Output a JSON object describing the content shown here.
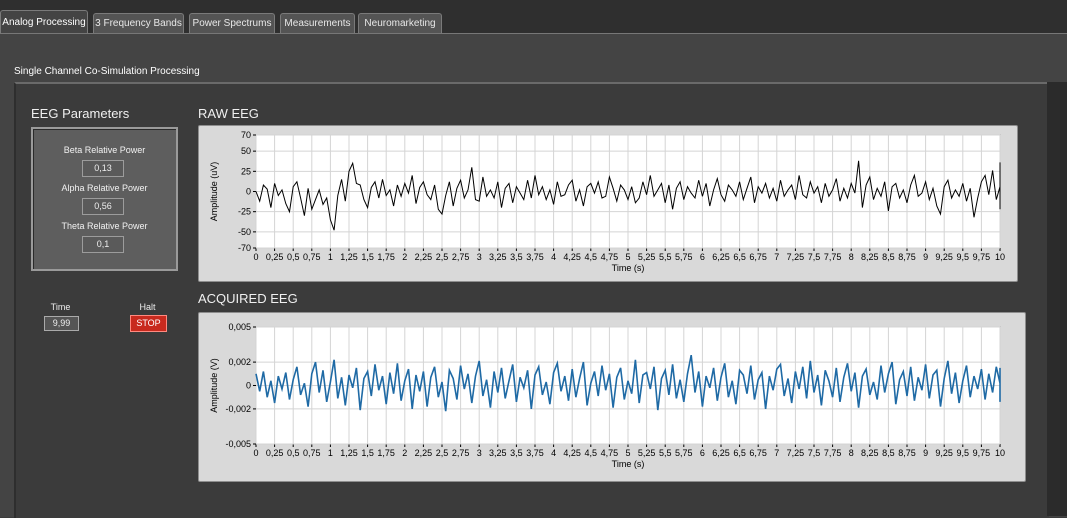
{
  "tabs": [
    {
      "label": "Analog Processing",
      "active": true
    },
    {
      "label": "3 Frequency Bands",
      "active": false
    },
    {
      "label": "Power Spectrums",
      "active": false
    },
    {
      "label": "Measurements",
      "active": false
    },
    {
      "label": "Neuromarketing",
      "active": false
    }
  ],
  "section_title": "Single Channel Co-Simulation Processing",
  "eeg_params": {
    "title": "EEG Parameters",
    "beta_label": "Beta Relative Power",
    "beta_value": "0,13",
    "alpha_label": "Alpha Relative Power",
    "alpha_value": "0,56",
    "theta_label": "Theta Relative Power",
    "theta_value": "0,1"
  },
  "controls": {
    "time_label": "Time",
    "time_value": "9,99",
    "halt_label": "Halt",
    "stop_label": "STOP"
  },
  "colors": {
    "raw_trace": "#000000",
    "acquired_trace": "#1f6aa5",
    "stop_button": "#c82a1e"
  },
  "chart_data": [
    {
      "type": "line",
      "title": "RAW EEG",
      "xlabel": "Time (s)",
      "ylabel": "Amplitude (uV)",
      "xlim": [
        0,
        10
      ],
      "ylim": [
        -70,
        70
      ],
      "x_ticks": [
        "0",
        "0,25",
        "0,5",
        "0,75",
        "1",
        "1,25",
        "1,5",
        "1,75",
        "2",
        "2,25",
        "2,5",
        "2,75",
        "3",
        "3,25",
        "3,5",
        "3,75",
        "4",
        "4,25",
        "4,5",
        "4,75",
        "5",
        "5,25",
        "5,5",
        "5,75",
        "6",
        "6,25",
        "6,5",
        "6,75",
        "7",
        "7,25",
        "7,5",
        "7,75",
        "8",
        "8,25",
        "8,5",
        "8,75",
        "9",
        "9,25",
        "9,5",
        "9,75",
        "10"
      ],
      "y_ticks": [
        "70",
        "50",
        "25",
        "0",
        "-25",
        "-50",
        "-70"
      ],
      "grid": true,
      "series": [
        {
          "color": "#000000",
          "x_step": 0.05,
          "values": [
            0,
            -12,
            8,
            3,
            -20,
            10,
            -5,
            2,
            -15,
            -25,
            6,
            12,
            -8,
            -30,
            4,
            -22,
            -10,
            2,
            -16,
            -8,
            -35,
            -48,
            -5,
            15,
            -12,
            25,
            35,
            10,
            8,
            -10,
            -20,
            5,
            12,
            -8,
            15,
            -5,
            2,
            -18,
            8,
            -6,
            10,
            -2,
            20,
            -15,
            5,
            12,
            -4,
            -10,
            8,
            -22,
            -28,
            -5,
            12,
            -18,
            4,
            14,
            -8,
            2,
            30,
            -10,
            -12,
            18,
            -6,
            2,
            -8,
            12,
            -20,
            4,
            10,
            -14,
            6,
            -2,
            -10,
            14,
            -8,
            20,
            -4,
            6,
            -10,
            2,
            -16,
            12,
            -6,
            -4,
            8,
            14,
            -12,
            2,
            -18,
            6,
            10,
            -2,
            12,
            -8,
            -6,
            18,
            4,
            -12,
            8,
            2,
            -10,
            6,
            -14,
            -8,
            12,
            -4,
            20,
            -6,
            2,
            10,
            -14,
            8,
            -22,
            4,
            12,
            -10,
            6,
            -2,
            -8,
            14,
            -6,
            10,
            -18,
            2,
            16,
            -4,
            -12,
            8,
            2,
            -6,
            12,
            -10,
            4,
            18,
            -14,
            6,
            -2,
            10,
            -8,
            4,
            -12,
            14,
            -6,
            2,
            8,
            -10,
            20,
            -4,
            -8,
            12,
            -2,
            6,
            -14,
            10,
            -6,
            2,
            16,
            -12,
            4,
            -8,
            10,
            -2,
            38,
            -20,
            8,
            18,
            -10,
            4,
            -6,
            12,
            -24,
            6,
            10,
            -8,
            2,
            -14,
            8,
            20,
            -6,
            -2,
            12,
            -10,
            4,
            -18,
            -28,
            6,
            14,
            -8,
            2,
            -6,
            10,
            -12,
            4,
            -32,
            -8,
            12,
            20,
            -4,
            26,
            -10,
            6,
            -2,
            8,
            -14,
            12,
            -6,
            4,
            24,
            -16,
            2,
            -10,
            6,
            36,
            -12,
            -4,
            8,
            -20,
            -22,
            10,
            -6,
            2
          ]
        }
      ]
    },
    {
      "type": "line",
      "title": "ACQUIRED EEG",
      "xlabel": "Time (s)",
      "ylabel": "Amplitude (V)",
      "xlim": [
        0,
        10
      ],
      "ylim": [
        -0.005,
        0.005
      ],
      "x_ticks": [
        "0",
        "0,25",
        "0,5",
        "0,75",
        "1",
        "1,25",
        "1,5",
        "1,75",
        "2",
        "2,25",
        "2,5",
        "2,75",
        "3",
        "3,25",
        "3,5",
        "3,75",
        "4",
        "4,25",
        "4,5",
        "4,75",
        "5",
        "5,25",
        "5,5",
        "5,75",
        "6",
        "6,25",
        "6,5",
        "6,75",
        "7",
        "7,25",
        "7,5",
        "7,75",
        "8",
        "8,25",
        "8,5",
        "8,75",
        "9",
        "9,25",
        "9,5",
        "9,75",
        "10"
      ],
      "y_ticks": [
        "0,005",
        "0,002",
        "0",
        "-0,002",
        "-0,005"
      ],
      "grid": true,
      "series": [
        {
          "color": "#1f6aa5",
          "x_step": 0.05,
          "values": [
            0.001,
            -0.0005,
            0.0012,
            -0.001,
            0.0004,
            -0.0015,
            0.0008,
            -0.0003,
            0.0011,
            -0.0012,
            0.0005,
            0.0016,
            -0.0008,
            0.0002,
            -0.0018,
            0.001,
            0.002,
            -0.0006,
            0.0013,
            -0.0014,
            0.0003,
            0.0022,
            -0.0011,
            0.0007,
            -0.0017,
            0.0009,
            -0.0002,
            0.0015,
            -0.0021,
            0.0006,
            0.0012,
            -0.0009,
            0.0018,
            -0.0004,
            0.0008,
            -0.0016,
            0.0011,
            -0.0007,
            0.0019,
            -0.0013,
            0.0004,
            0.0014,
            -0.002,
            0.0009,
            -0.0005,
            0.0012,
            -0.0018,
            0.0007,
            0.0016,
            -0.001,
            0.0003,
            -0.0022,
            0.0013,
            0.0006,
            -0.0012,
            0.0017,
            -0.0003,
            0.001,
            -0.0015,
            0.0008,
            0.0021,
            -0.0009,
            0.0005,
            -0.0019,
            0.0012,
            -0.0006,
            0.0015,
            -0.0011,
            0.0004,
            0.0018,
            -0.0014,
            0.0007,
            -0.0002,
            0.0013,
            -0.002,
            0.0009,
            0.0016,
            -0.0008,
            0.0003,
            -0.0016,
            0.0011,
            0.0019,
            -0.0005,
            0.0008,
            -0.0013,
            0.0014,
            -0.001,
            0.0006,
            0.002,
            -0.0017,
            0.0002,
            0.0012,
            -0.0009,
            0.0017,
            -0.0004,
            0.001,
            -0.0019,
            0.0007,
            0.0015,
            -0.0012,
            0.0004,
            -0.0007,
            0.0022,
            -0.0015,
            0.0009,
            0.0011,
            -0.0003,
            0.0016,
            -0.0021,
            0.0006,
            0.0013,
            -0.0008,
            0.0018,
            -0.0011,
            0.0005,
            -0.0014,
            0.001,
            0.0026,
            -0.0006,
            0.0012,
            -0.0018,
            0.0008,
            -0.0002,
            0.0015,
            -0.0013,
            0.0007,
            0.0019,
            -0.001,
            0.0004,
            -0.0016,
            0.0013,
            0.0009,
            -0.0007,
            0.0017,
            -0.0012,
            0.0005,
            0.0011,
            -0.002,
            0.0008,
            -0.0004,
            0.0014,
            0.0018,
            -0.0009,
            0.0006,
            -0.0015,
            0.0012,
            -0.0003,
            0.0016,
            -0.0011,
            0.0021,
            -0.0006,
            0.0009,
            -0.0017,
            0.0013,
            0.0004,
            -0.001,
            0.0015,
            -0.0014,
            0.0007,
            0.0019,
            -0.0005,
            0.0011,
            -0.0019,
            0.0008,
            0.0014,
            -0.0008,
            0.0003,
            -0.0012,
            0.0017,
            -0.0006,
            0.001,
            0.002,
            -0.0016,
            0.0005,
            0.0012,
            -0.0009,
            0.0016,
            -0.0013,
            0.0007,
            -0.0004,
            0.0018,
            -0.0011,
            0.0009,
            0.0013,
            -0.0018,
            0.0006,
            0.0021,
            -0.0007,
            0.0011,
            -0.0015,
            0.0004,
            0.0017,
            -0.001,
            0.0008,
            -0.0003,
            0.0014,
            -0.0012,
            0.001,
            -0.0006,
            0.0016,
            0.0002,
            -0.0009,
            0.0013,
            -0.0014,
            0.0007,
            0.0012,
            -0.0004,
            0.0009,
            -0.0011,
            0.0015,
            0.0003,
            -0.0007,
            0.0011,
            -0.0005,
            0.0008,
            -0.0002
          ]
        }
      ]
    }
  ]
}
